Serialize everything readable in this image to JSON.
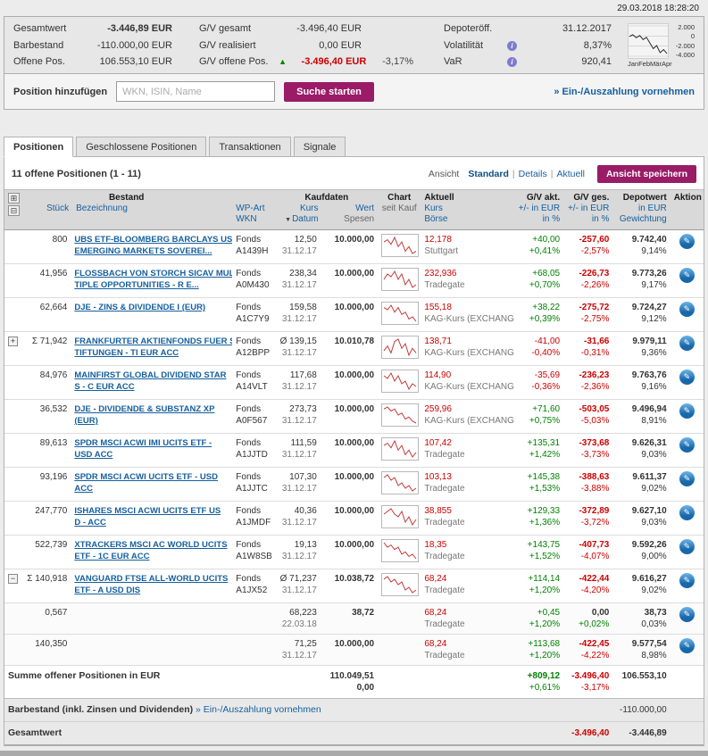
{
  "meta": {
    "datetime": "29.03.2018  18:28:20"
  },
  "colors": {
    "accent": "#9a1b66",
    "link": "#155f9e",
    "positive": "#008200",
    "negative": "#cc0000"
  },
  "icons": {
    "expand_all": "⊞",
    "collapse_all": "⊟",
    "expand_row": "+",
    "collapse_row": "−",
    "info": "i",
    "up_arrow": "▲",
    "sort_desc": "▼",
    "action": "✎"
  },
  "summary": {
    "left": [
      {
        "label": "Gesamtwert",
        "value": "-3.446,89 EUR"
      },
      {
        "label": "Barbestand",
        "value": "-110.000,00 EUR"
      },
      {
        "label": "Offene Pos.",
        "value": "106.553,10 EUR"
      }
    ],
    "middle": [
      {
        "label": "G/V gesamt",
        "value": "-3.496,40 EUR"
      },
      {
        "label": "G/V realisiert",
        "value": "0,00 EUR"
      },
      {
        "label": "G/V offene Pos.",
        "value": "-3.496,40 EUR",
        "pct": "-3,17%"
      }
    ],
    "right": [
      {
        "label": "Depoteröff.",
        "value": "31.12.2017"
      },
      {
        "label": "Volatilität",
        "value": "8,37%"
      },
      {
        "label": "VaR",
        "value": "920,41"
      }
    ],
    "spark": {
      "y_labels": [
        "2.000",
        "0",
        "-2.000",
        "-4.000"
      ],
      "x_labels": [
        "Jan",
        "Feb",
        "Mär",
        "Apr"
      ],
      "y_min": -4000,
      "y_max": 2000,
      "points": [
        -100,
        250,
        -350,
        100,
        -700,
        -250,
        -1400,
        -2500,
        -1900,
        -3300,
        -2700,
        -3450
      ]
    }
  },
  "search": {
    "label": "Position hinzufügen",
    "placeholder": "WKN, ISIN, Name",
    "button": "Suche starten",
    "payout_link": "» Ein-/Auszahlung vornehmen"
  },
  "tabs": [
    {
      "label": "Positionen",
      "active": true
    },
    {
      "label": "Geschlossene Positionen",
      "active": false
    },
    {
      "label": "Transaktionen",
      "active": false
    },
    {
      "label": "Signale",
      "active": false
    }
  ],
  "toolbar": {
    "count_text": "11 offene Positionen (1 - 11)",
    "view_label": "Ansicht",
    "views": [
      {
        "label": "Standard",
        "active": true
      },
      {
        "label": "Details",
        "active": false
      },
      {
        "label": "Aktuell",
        "active": false
      }
    ],
    "save_view_button": "Ansicht speichern"
  },
  "table": {
    "header": {
      "group_bestand": "Bestand",
      "col_stueck": "Stück",
      "col_bezeichnung": "Bezeichnung",
      "col_wpart": "WP-Art",
      "col_wkn": "WKN",
      "group_kaufdaten": "Kaufdaten",
      "col_kurs": "Kurs",
      "col_datum": "Datum",
      "col_wert": "Wert",
      "col_spesen": "Spesen",
      "col_chart": "Chart",
      "col_seit_kauf": "seit Kauf",
      "col_aktuell": "Aktuell",
      "col_kurs2": "Kurs",
      "col_boerse": "Börse",
      "col_gv_akt": "G/V akt.",
      "col_gv_ges": "G/V ges.",
      "col_eur": "+/- in EUR",
      "col_pct": "in %",
      "col_depotwert": "Depotwert",
      "col_in_eur": "in EUR",
      "col_gewichtung": "Gewichtung",
      "col_aktion": "Aktion"
    },
    "rows": [
      {
        "expand": "",
        "sub": false,
        "stueck": "800",
        "name1": "UBS ETF-BLOOMBERG BARCLAYS USD",
        "name2": "EMERGING MARKETS SOVEREI...",
        "wp_art": "Fonds",
        "wkn": "A1439H",
        "kurs": "12,50",
        "datum": "31.12.17",
        "wert": "10.000,00",
        "spark": [
          7,
          8,
          6,
          9,
          5,
          7,
          3,
          5,
          2,
          3
        ],
        "kurs_akt": "12,178",
        "boerse": "Stuttgart",
        "gv_akt": "+40,00",
        "gv_akt_pct": "+0,41%",
        "gv_ges": "-257,60",
        "gv_ges_pct": "-2,57%",
        "depot": "9.742,40",
        "gewichtung": "9,14%"
      },
      {
        "expand": "",
        "sub": false,
        "stueck": "41,956",
        "name1": "FLOSSBACH VON STORCH SICAV MUL",
        "name2": "TIPLE OPPORTUNITIES - R E...",
        "wp_art": "Fonds",
        "wkn": "A0M430",
        "kurs": "238,34",
        "datum": "31.12.17",
        "wert": "10.000,00",
        "spark": [
          6,
          8,
          7,
          9,
          6,
          8,
          4,
          6,
          3,
          4
        ],
        "kurs_akt": "232,936",
        "boerse": "Tradegate",
        "gv_akt": "+68,05",
        "gv_akt_pct": "+0,70%",
        "gv_ges": "-226,73",
        "gv_ges_pct": "-2,26%",
        "depot": "9.773,26",
        "gewichtung": "9,17%"
      },
      {
        "expand": "",
        "sub": false,
        "stueck": "62,664",
        "name1": "DJE - ZINS & DIVIDENDE I (EUR)",
        "name2": "",
        "wp_art": "Fonds",
        "wkn": "A1C7Y9",
        "kurs": "159,58",
        "datum": "31.12.17",
        "wert": "10.000,00",
        "spark": [
          8,
          7,
          9,
          6,
          8,
          5,
          6,
          3,
          4,
          2
        ],
        "kurs_akt": "155,18",
        "boerse": "KAG-Kurs (EXCHANGE_C...",
        "gv_akt": "+38,22",
        "gv_akt_pct": "+0,39%",
        "gv_ges": "-275,72",
        "gv_ges_pct": "-2,75%",
        "depot": "9.724,27",
        "gewichtung": "9,12%"
      },
      {
        "expand": "plus",
        "sub": false,
        "stueck": "Σ 71,942",
        "name1": "FRANKFURTER AKTIENFONDS FUER S",
        "name2": "TIFTUNGEN - TI EUR ACC",
        "wp_art": "Fonds",
        "wkn": "A12BPP",
        "kurs": "Ø 139,15",
        "datum": "31.12.17",
        "wert": "10.010,78",
        "spark": [
          5,
          7,
          4,
          9,
          10,
          6,
          8,
          3,
          6,
          4
        ],
        "kurs_akt": "138,71",
        "boerse": "KAG-Kurs (EXCHANGE_C...",
        "gv_akt": "-41,00",
        "gv_akt_pct": "-0,40%",
        "gv_ges": "-31,66",
        "gv_ges_pct": "-0,31%",
        "depot": "9.979,11",
        "gewichtung": "9,36%"
      },
      {
        "expand": "",
        "sub": false,
        "stueck": "84,976",
        "name1": "MAINFIRST GLOBAL DIVIDEND STAR",
        "name2": "S - C EUR ACC",
        "wp_art": "Fonds",
        "wkn": "A14VLT",
        "kurs": "117,68",
        "datum": "31.12.17",
        "wert": "10.000,00",
        "spark": [
          7,
          6,
          8,
          5,
          7,
          4,
          5,
          2,
          4,
          3
        ],
        "kurs_akt": "114,90",
        "boerse": "KAG-Kurs (EXCHANGE_C...",
        "gv_akt": "-35,69",
        "gv_akt_pct": "-0,36%",
        "gv_ges": "-236,23",
        "gv_ges_pct": "-2,36%",
        "depot": "9.763,76",
        "gewichtung": "9,16%"
      },
      {
        "expand": "",
        "sub": false,
        "stueck": "36,532",
        "name1": "DJE - DIVIDENDE & SUBSTANZ XP",
        "name2": "(EUR)",
        "wp_art": "Fonds",
        "wkn": "A0F567",
        "kurs": "273,73",
        "datum": "31.12.17",
        "wert": "10.000,00",
        "spark": [
          8,
          9,
          7,
          8,
          5,
          6,
          3,
          4,
          2,
          1
        ],
        "kurs_akt": "259,96",
        "boerse": "KAG-Kurs (EXCHANGE_C...",
        "gv_akt": "+71,60",
        "gv_akt_pct": "+0,75%",
        "gv_ges": "-503,05",
        "gv_ges_pct": "-5,03%",
        "depot": "9.496,94",
        "gewichtung": "8,91%"
      },
      {
        "expand": "",
        "sub": false,
        "stueck": "89,613",
        "name1": "SPDR MSCI ACWI IMI UCITS ETF -",
        "name2": "USD ACC",
        "wp_art": "Fonds",
        "wkn": "A1JJTD",
        "kurs": "111,59",
        "datum": "31.12.17",
        "wert": "10.000,00",
        "spark": [
          6,
          7,
          5,
          8,
          4,
          6,
          2,
          4,
          1,
          3
        ],
        "kurs_akt": "107,42",
        "boerse": "Tradegate",
        "gv_akt": "+135,31",
        "gv_akt_pct": "+1,42%",
        "gv_ges": "-373,68",
        "gv_ges_pct": "-3,73%",
        "depot": "9.626,31",
        "gewichtung": "9,03%"
      },
      {
        "expand": "",
        "sub": false,
        "stueck": "93,196",
        "name1": "SPDR MSCI ACWI UCITS ETF - USD",
        "name2": "ACC",
        "wp_art": "Fonds",
        "wkn": "A1JJTC",
        "kurs": "107,30",
        "datum": "31.12.17",
        "wert": "10.000,00",
        "spark": [
          7,
          8,
          6,
          7,
          4,
          5,
          3,
          4,
          2,
          3
        ],
        "kurs_akt": "103,13",
        "boerse": "Tradegate",
        "gv_akt": "+145,38",
        "gv_akt_pct": "+1,53%",
        "gv_ges": "-388,63",
        "gv_ges_pct": "-3,88%",
        "depot": "9.611,37",
        "gewichtung": "9,02%"
      },
      {
        "expand": "",
        "sub": false,
        "stueck": "247,770",
        "name1": "ISHARES MSCI ACWI UCITS ETF US",
        "name2": "D - ACC",
        "wp_art": "Fonds",
        "wkn": "A1JMDF",
        "kurs": "40,36",
        "datum": "31.12.17",
        "wert": "10.000,00",
        "spark": [
          6,
          7,
          8,
          6,
          5,
          7,
          3,
          5,
          2,
          4
        ],
        "kurs_akt": "38,855",
        "boerse": "Tradegate",
        "gv_akt": "+129,33",
        "gv_akt_pct": "+1,36%",
        "gv_ges": "-372,89",
        "gv_ges_pct": "-3,72%",
        "depot": "9.627,10",
        "gewichtung": "9,03%"
      },
      {
        "expand": "",
        "sub": false,
        "stueck": "522,739",
        "name1": "XTRACKERS MSCI AC WORLD UCITS",
        "name2": "ETF - 1C EUR ACC",
        "wp_art": "Fonds",
        "wkn": "A1W8SB",
        "kurs": "19,13",
        "datum": "31.12.17",
        "wert": "10.000,00",
        "spark": [
          8,
          6,
          7,
          5,
          6,
          3,
          4,
          2,
          3,
          1
        ],
        "kurs_akt": "18,35",
        "boerse": "Tradegate",
        "gv_akt": "+143,75",
        "gv_akt_pct": "+1,52%",
        "gv_ges": "-407,73",
        "gv_ges_pct": "-4,07%",
        "depot": "9.592,26",
        "gewichtung": "9,00%"
      },
      {
        "expand": "minus",
        "sub": false,
        "stueck": "Σ 140,918",
        "name1": "VANGUARD FTSE ALL-WORLD UCITS",
        "name2": "ETF - A USD DIS",
        "wp_art": "Fonds",
        "wkn": "A1JX52",
        "kurs": "Ø 71,237",
        "datum": "31.12.17",
        "wert": "10.038,72",
        "spark": [
          7,
          8,
          6,
          7,
          5,
          6,
          3,
          4,
          2,
          3
        ],
        "kurs_akt": "68,24",
        "boerse": "Tradegate",
        "gv_akt": "+114,14",
        "gv_akt_pct": "+1,20%",
        "gv_ges": "-422,44",
        "gv_ges_pct": "-4,20%",
        "depot": "9.616,27",
        "gewichtung": "9,02%"
      },
      {
        "expand": "",
        "sub": true,
        "stueck": "0,567",
        "name1": "",
        "name2": "",
        "wp_art": "",
        "wkn": "",
        "kurs": "68,223",
        "datum": "22.03.18",
        "wert": "38,72",
        "spark": null,
        "kurs_akt": "68,24",
        "boerse": "Tradegate",
        "gv_akt": "+0,45",
        "gv_akt_pct": "+1,20%",
        "gv_ges": "0,00",
        "gv_ges_pct": "+0,02%",
        "depot": "38,73",
        "gewichtung": "0,03%"
      },
      {
        "expand": "",
        "sub": true,
        "stueck": "140,350",
        "name1": "",
        "name2": "",
        "wp_art": "",
        "wkn": "",
        "kurs": "71,25",
        "datum": "31.12.17",
        "wert": "10.000,00",
        "spark": null,
        "kurs_akt": "68,24",
        "boerse": "Tradegate",
        "gv_akt": "+113,68",
        "gv_akt_pct": "+1,20%",
        "gv_ges": "-422,45",
        "gv_ges_pct": "-4,22%",
        "depot": "9.577,54",
        "gewichtung": "8,98%"
      }
    ],
    "footer": {
      "sum_label": "Summe offener Positionen in EUR",
      "sum_wert1": "110.049,51",
      "sum_wert2": "0,00",
      "sum_gv_akt": "+809,12",
      "sum_gv_akt_pct": "+0,61%",
      "sum_gv_ges": "-3.496,40",
      "sum_gv_ges_pct": "-3,17%",
      "sum_depot": "106.553,10",
      "bar_label": "Barbestand (inkl. Zinsen und Dividenden)",
      "bar_link": "» Ein-/Auszahlung vornehmen",
      "bar_value": "-110.000,00",
      "total_label": "Gesamtwert",
      "total_gv_ges": "-3.496,40",
      "total_value": "-3.446,89"
    }
  }
}
